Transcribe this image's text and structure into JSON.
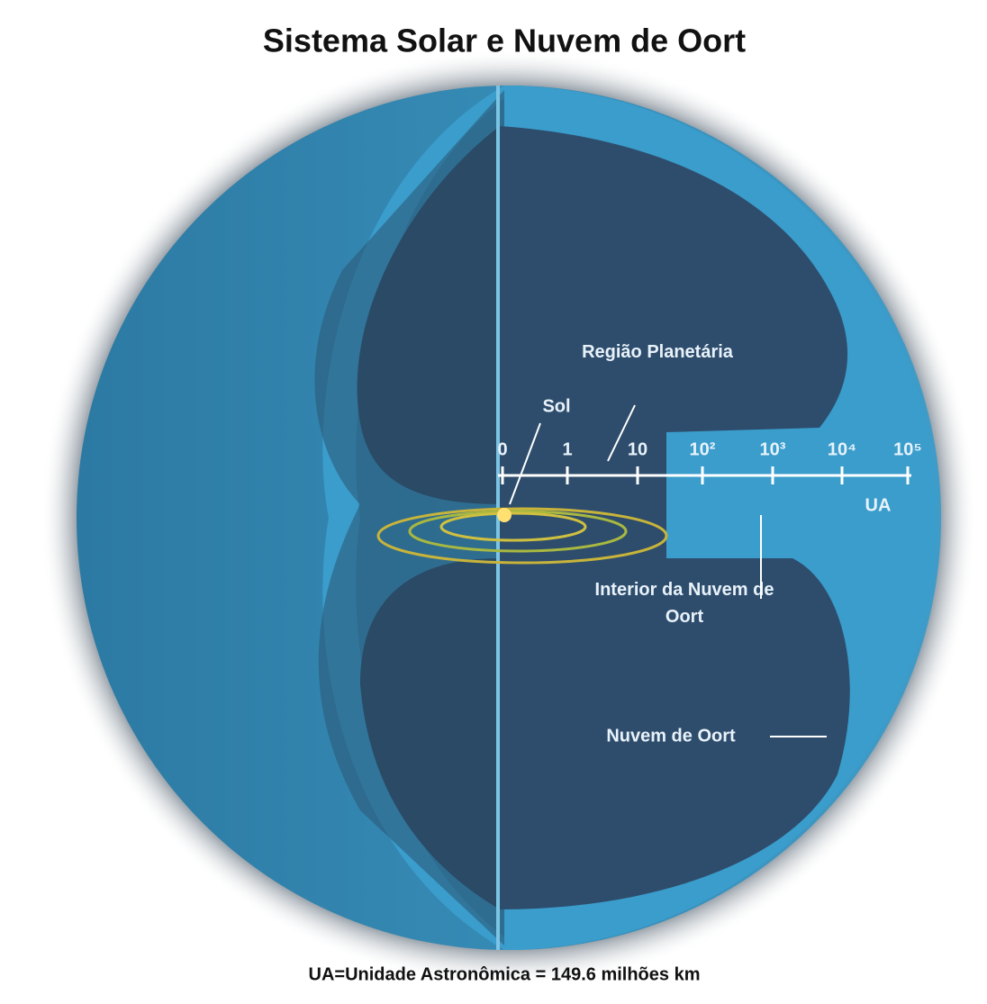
{
  "title": "Sistema Solar e Nuvem de Oort",
  "labels": {
    "sun": "Sol",
    "planetary_region": "Região Planetária",
    "inner_oort": "Interior da Nuvem de Oort",
    "oort_cloud": "Nuvem de Oort"
  },
  "scale": {
    "ticks": [
      "0",
      "1",
      "10",
      "10²",
      "10³",
      "10⁴",
      "10⁵"
    ],
    "unit": "UA"
  },
  "footer": "UA=Unidade Astronômica = 149.6 milhões km"
}
